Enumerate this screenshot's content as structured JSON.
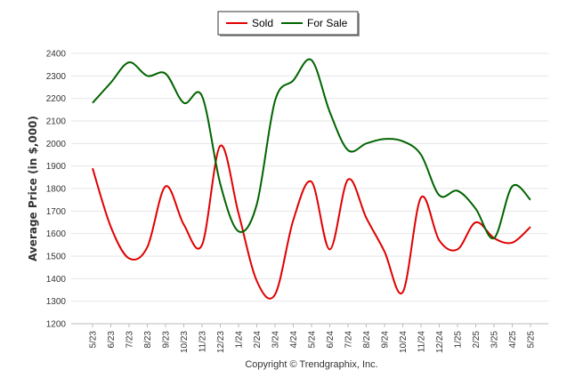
{
  "chart_data": {
    "type": "line",
    "title": "",
    "xlabel": "",
    "ylabel": "Average Price (in $,000)",
    "ylim": [
      1200,
      2400
    ],
    "yticks": [
      1200,
      1300,
      1400,
      1500,
      1600,
      1700,
      1800,
      1900,
      2000,
      2100,
      2200,
      2300,
      2400
    ],
    "categories": [
      "5/23",
      "6/23",
      "7/23",
      "8/23",
      "9/23",
      "10/23",
      "11/23",
      "12/23",
      "1/24",
      "2/24",
      "3/24",
      "4/24",
      "5/24",
      "6/24",
      "7/24",
      "8/24",
      "9/24",
      "10/24",
      "11/24",
      "12/24",
      "1/25",
      "2/25",
      "3/25",
      "4/25",
      "5/25"
    ],
    "grid": "horizontal",
    "legend_position": "top-center",
    "series": [
      {
        "name": "Sold",
        "color": "#e00000",
        "values": [
          1890,
          1630,
          1490,
          1540,
          1810,
          1640,
          1550,
          1990,
          1690,
          1390,
          1330,
          1660,
          1830,
          1530,
          1840,
          1670,
          1520,
          1340,
          1760,
          1570,
          1530,
          1650,
          1580,
          1560,
          1630
        ]
      },
      {
        "name": "For Sale",
        "color": "#006400",
        "values": [
          2180,
          2270,
          2360,
          2300,
          2310,
          2180,
          2210,
          1820,
          1610,
          1730,
          2190,
          2280,
          2370,
          2140,
          1970,
          2000,
          2020,
          2010,
          1950,
          1770,
          1790,
          1710,
          1580,
          1810,
          1750
        ]
      }
    ]
  },
  "footer": {
    "copyright": "Copyright © Trendgraphix, Inc."
  }
}
